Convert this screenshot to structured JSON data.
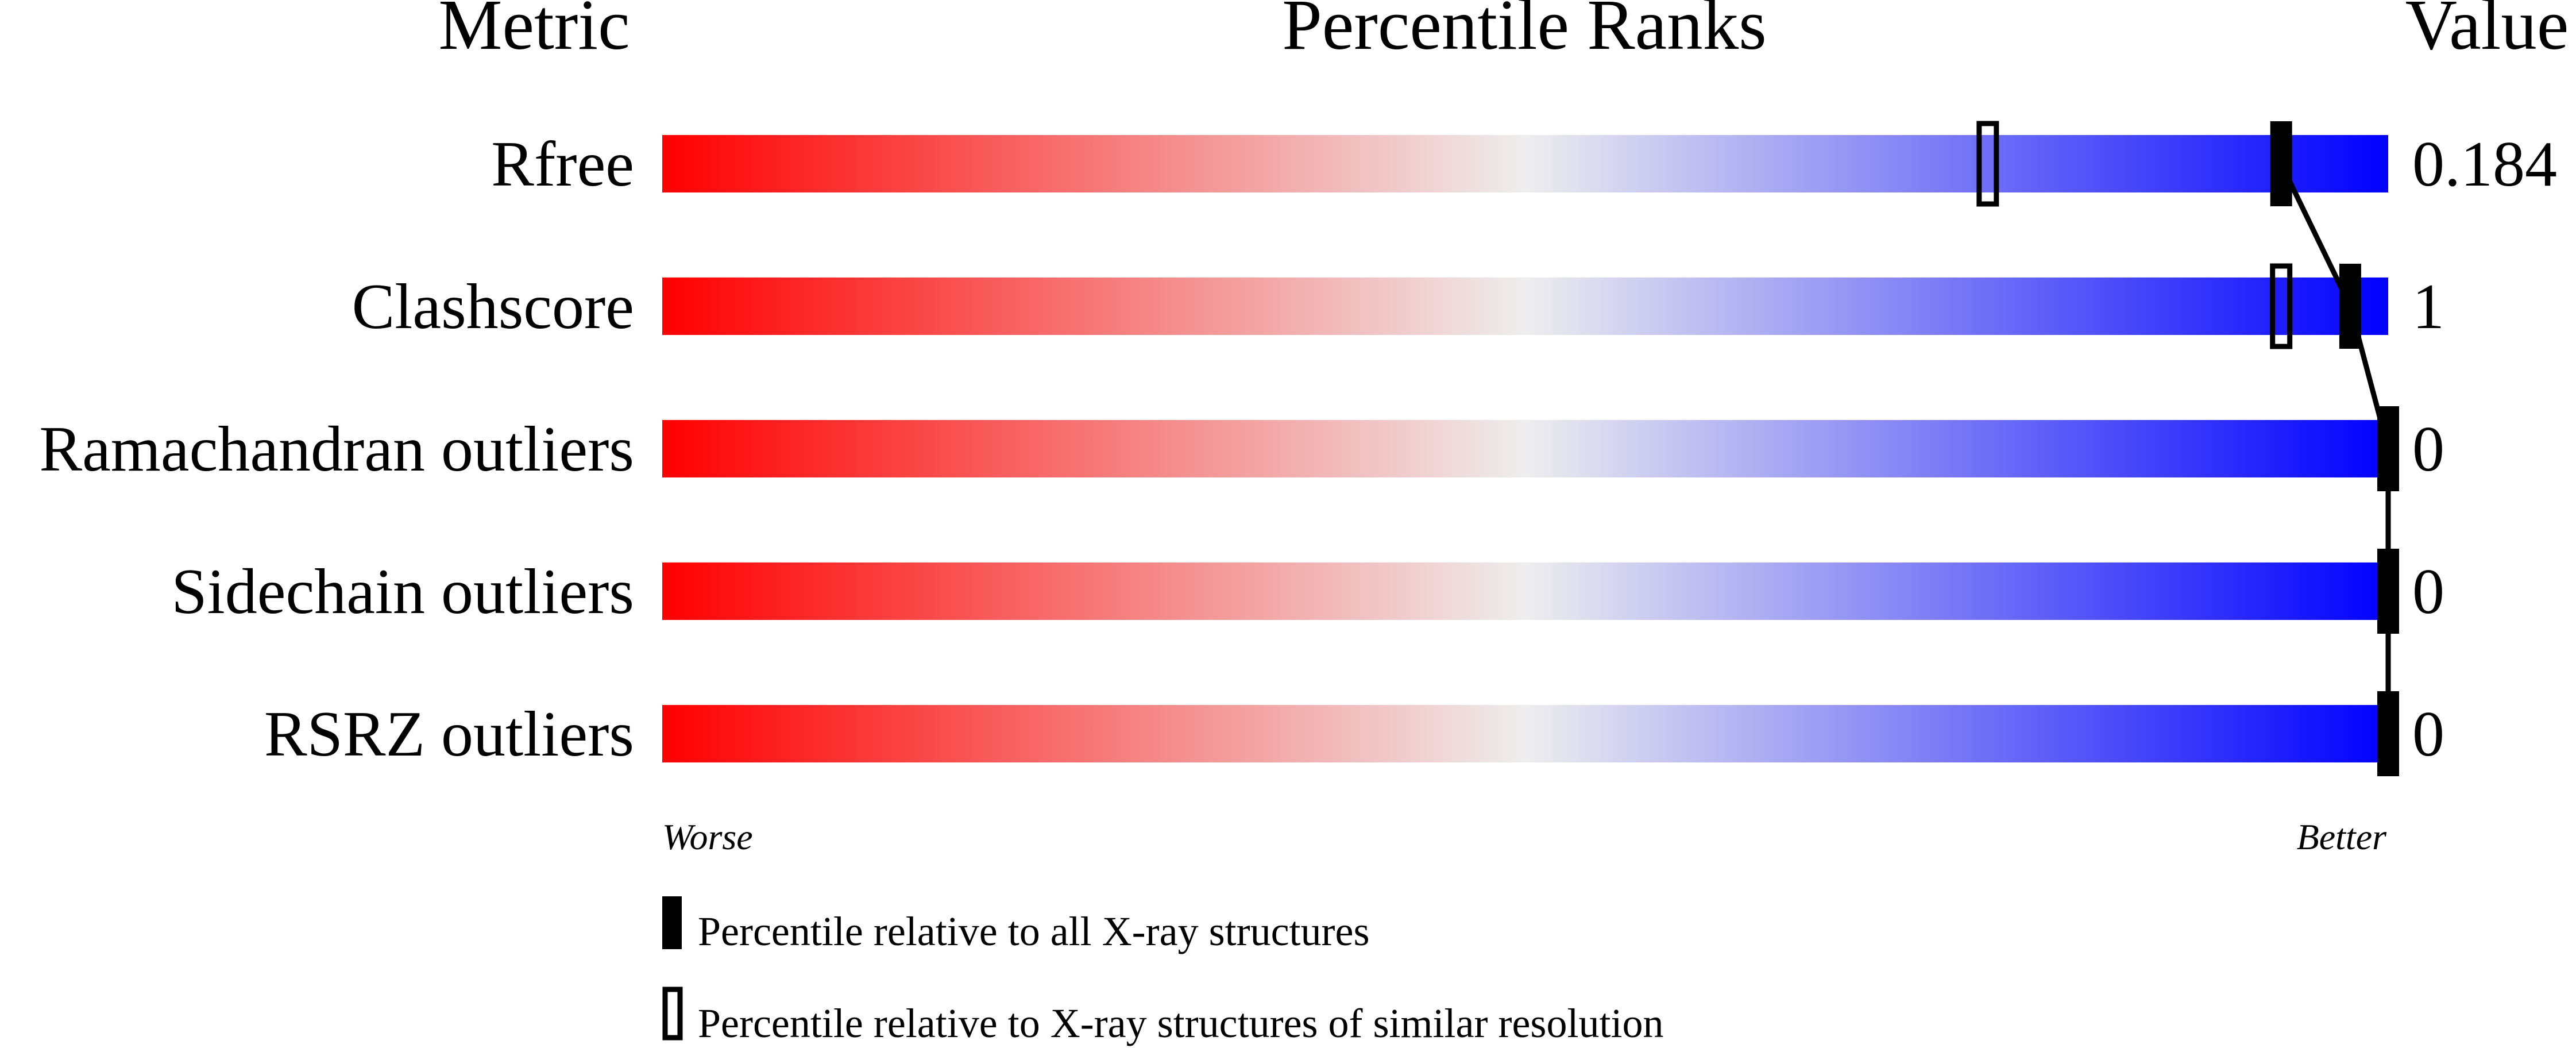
{
  "chart_data": {
    "type": "bar",
    "headers": {
      "metric": "Metric",
      "ranks": "Percentile Ranks",
      "value": "Value"
    },
    "xlim": [
      0,
      100
    ],
    "rows": [
      {
        "metric": "Rfree",
        "value": "0.184",
        "percentile_all": 93.8,
        "percentile_similar": 76.8
      },
      {
        "metric": "Clashscore",
        "value": "1",
        "percentile_all": 97.8,
        "percentile_similar": 93.8
      },
      {
        "metric": "Ramachandran outliers",
        "value": "0",
        "percentile_all": 100
      },
      {
        "metric": "Sidechain outliers",
        "value": "0",
        "percentile_all": 100
      },
      {
        "metric": "RSRZ outliers",
        "value": "0",
        "percentile_all": 100
      }
    ],
    "axis_labels": {
      "left": "Worse",
      "right": "Better"
    },
    "legend": {
      "filled": "Percentile relative to all X-ray structures",
      "open": "Percentile relative to X-ray structures of similar resolution"
    },
    "colors": {
      "worse": "#ff0000",
      "middle": "#eeeeee",
      "better": "#0000ff",
      "marker": "#000000"
    }
  }
}
